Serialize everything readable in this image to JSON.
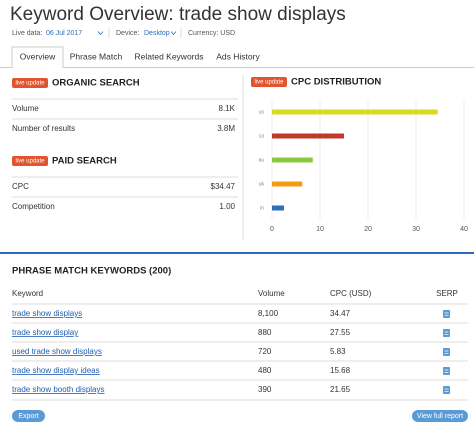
{
  "header": {
    "title": "Keyword Overview: trade show displays",
    "live_data_label": "Live data:",
    "date": "06 Jul 2017",
    "device_label": "Device:",
    "device": "Desktop",
    "currency": "Currency: USD"
  },
  "tabs": [
    "Overview",
    "Phrase Match",
    "Related Keywords",
    "Ads History"
  ],
  "badge": "live update",
  "organic": {
    "title": "ORGANIC SEARCH",
    "rows": [
      [
        "Volume",
        "8.1K"
      ],
      [
        "Number of results",
        "3.8M"
      ]
    ]
  },
  "paid": {
    "title": "PAID SEARCH",
    "rows": [
      [
        "CPC",
        "$34.47"
      ],
      [
        "Competition",
        "1.00"
      ]
    ]
  },
  "cpc_chart": {
    "type": "bar",
    "orientation": "horizontal",
    "title": "CPC DISTRIBUTION",
    "categories": [
      "us",
      "ca",
      "au",
      "uk",
      "in"
    ],
    "values": [
      34.5,
      15,
      8.5,
      6.3,
      2.5
    ],
    "colors": [
      "#d9d91e",
      "#c0392b",
      "#8dc63f",
      "#f39c12",
      "#2e6fba"
    ],
    "xlim": [
      0,
      40
    ],
    "xticks": [
      0,
      10,
      20,
      30,
      40
    ]
  },
  "phrase_match": {
    "title": "PHRASE MATCH KEYWORDS (200)",
    "columns": [
      "Keyword",
      "Volume",
      "CPC (USD)",
      "SERP"
    ],
    "rows": [
      [
        "trade show displays",
        "8,100",
        "34.47"
      ],
      [
        "trade show display",
        "880",
        "27.55"
      ],
      [
        "used trade show displays",
        "720",
        "5.83"
      ],
      [
        "trade show display ideas",
        "480",
        "15.68"
      ],
      [
        "trade show booth displays",
        "390",
        "21.65"
      ]
    ]
  },
  "buttons": [
    "Export",
    "View full report"
  ]
}
